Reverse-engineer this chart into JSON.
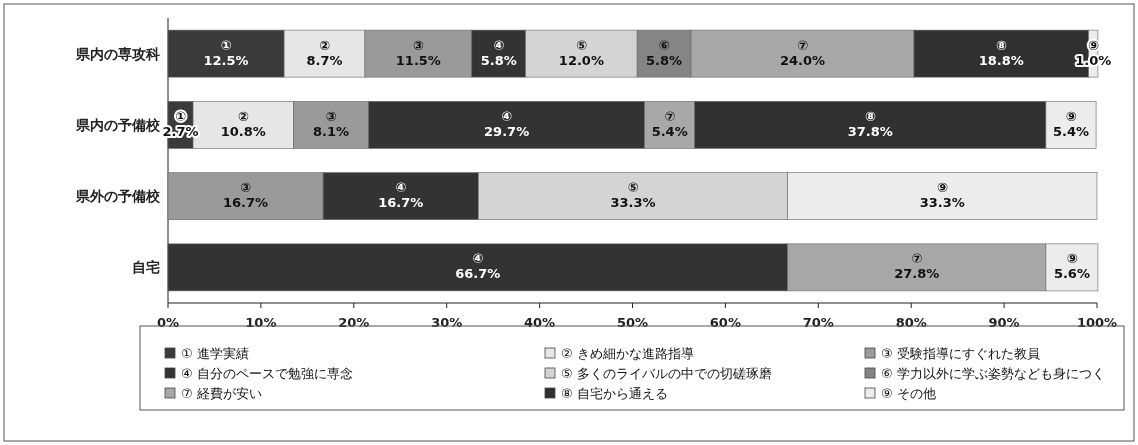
{
  "chart_data": {
    "type": "bar",
    "orientation": "horizontal",
    "stacked": true,
    "categories": [
      "県内の専攻科",
      "県内の予備校",
      "県外の予備校",
      "自宅"
    ],
    "xlim": [
      0,
      100
    ],
    "xticks": [
      {
        "value": 0,
        "label": "0%"
      },
      {
        "value": 10,
        "label": "10%"
      },
      {
        "value": 20,
        "label": "20%"
      },
      {
        "value": 30,
        "label": "30%"
      },
      {
        "value": 40,
        "label": "40%"
      },
      {
        "value": 50,
        "label": "50%"
      },
      {
        "value": 60,
        "label": "60%"
      },
      {
        "value": 70,
        "label": "70%"
      },
      {
        "value": 80,
        "label": "80%"
      },
      {
        "value": 90,
        "label": "90%"
      },
      {
        "value": 100,
        "label": "100%"
      }
    ],
    "legend": "bottom",
    "series": [
      {
        "name": "① 進学実績",
        "color": "#3a3a3a",
        "values": [
          12.5,
          2.7,
          null,
          null
        ],
        "value_labels": [
          "① 12.5%",
          "① 2.7%",
          null,
          null
        ]
      },
      {
        "name": "② きめ細かな進路指導",
        "color": "#e6e6e6",
        "values": [
          8.7,
          10.8,
          null,
          null
        ],
        "value_labels": [
          "② 8.7%",
          "② 10.8%",
          null,
          null
        ]
      },
      {
        "name": "③ 受験指導にすぐれた教員",
        "color": "#9a9a9a",
        "values": [
          11.5,
          8.1,
          16.7,
          null
        ],
        "value_labels": [
          "③ 11.5%",
          "③ 8.1%",
          "③ 16.7%",
          null
        ]
      },
      {
        "name": "④ 自分のペースで勉強に専念",
        "color": "#333333",
        "values": [
          5.8,
          29.7,
          16.7,
          66.7
        ],
        "value_labels": [
          "④ 5.8%",
          "④ 29.7%",
          "④ 16.7%",
          "④ 66.7%"
        ]
      },
      {
        "name": "⑤ 多くのライバルの中での切磋琢磨",
        "color": "#d4d4d4",
        "values": [
          12.0,
          null,
          33.3,
          null
        ],
        "value_labels": [
          "⑤ 12.0%",
          null,
          "⑤ 33.3%",
          null
        ]
      },
      {
        "name": "⑥ 学力以外に学ぶ姿勢なども身につく",
        "color": "#858585",
        "values": [
          5.8,
          null,
          null,
          null
        ],
        "value_labels": [
          "⑥ 5.8%",
          null,
          null,
          null
        ]
      },
      {
        "name": "⑦ 経費が安い",
        "color": "#a8a8a8",
        "values": [
          24.0,
          5.4,
          null,
          27.8
        ],
        "value_labels": [
          "⑦ 24.0%",
          "⑦ 5.4%",
          null,
          "⑦ 27.8%"
        ]
      },
      {
        "name": "⑧ 自宅から通える",
        "color": "#303030",
        "values": [
          18.8,
          37.8,
          null,
          null
        ],
        "value_labels": [
          "⑧ 18.8%",
          "⑧ 37.8%",
          null,
          null
        ]
      },
      {
        "name": "⑨ その他",
        "color": "#ececec",
        "values": [
          1.0,
          5.4,
          33.3,
          5.6
        ],
        "value_labels": [
          "⑨ 1.0%",
          "⑨ 5.4%",
          "⑨ 33.3%",
          "⑨ 5.6%"
        ]
      }
    ]
  }
}
